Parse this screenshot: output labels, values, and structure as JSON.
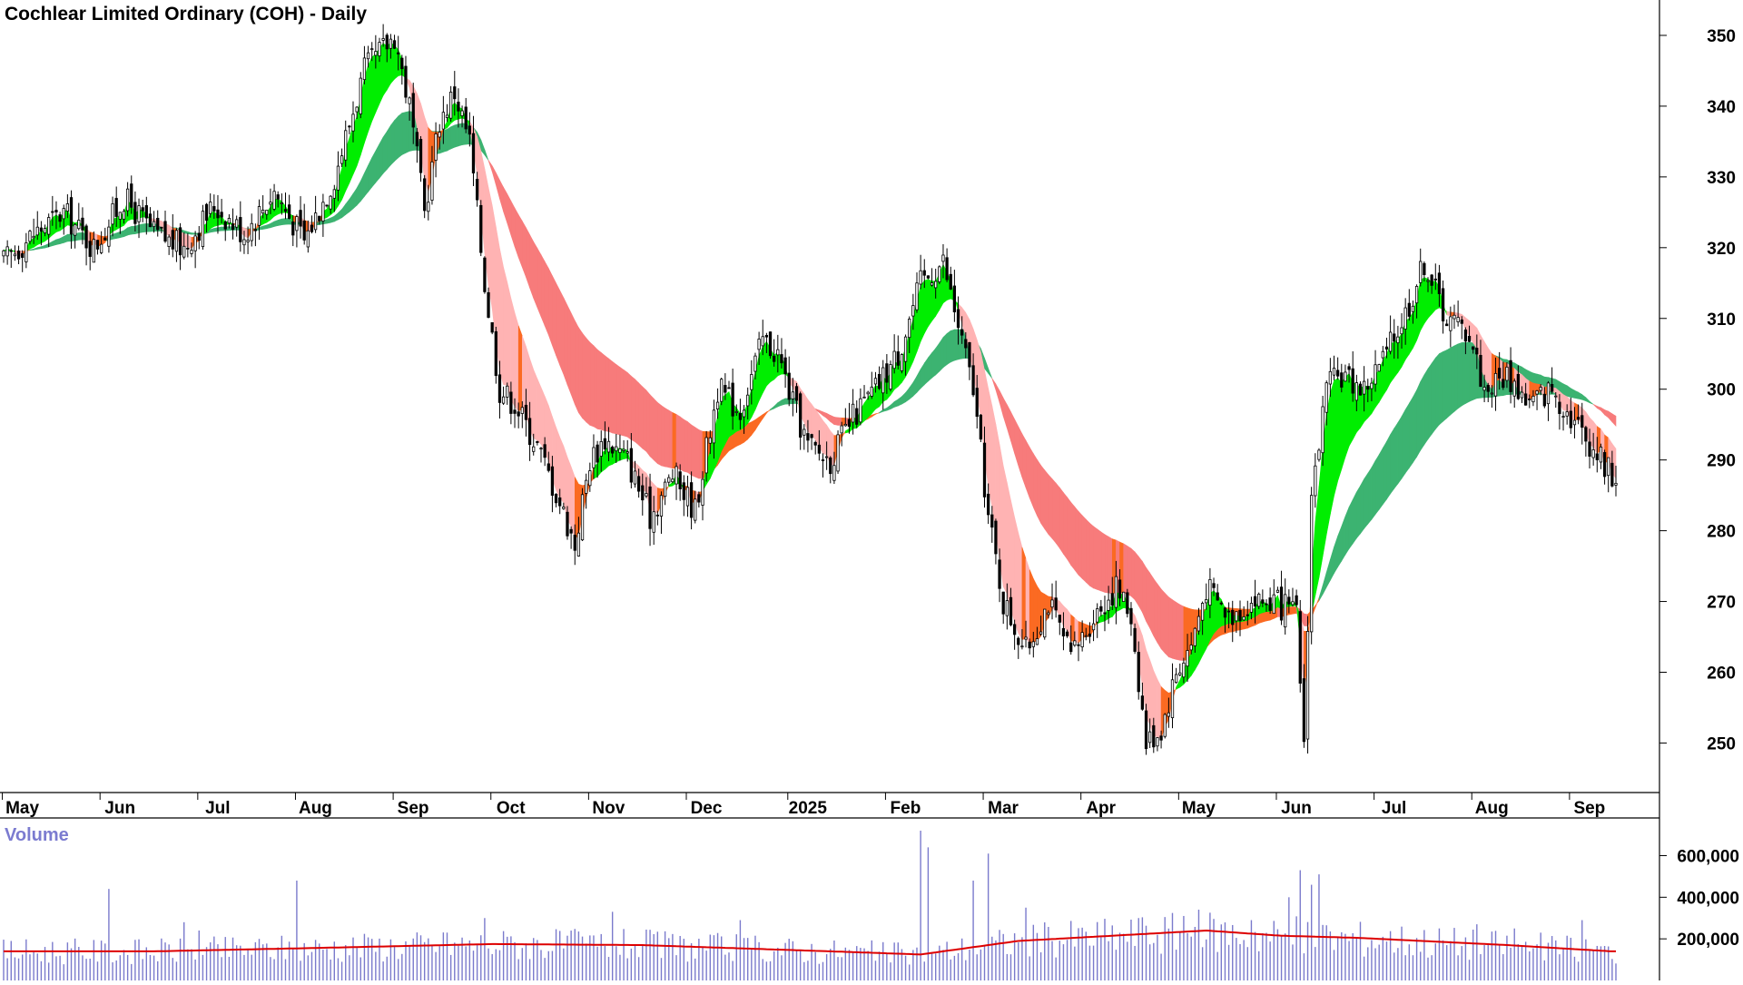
{
  "chart_data": {
    "type": "candlestick",
    "title": "Cochlear Limited Ordinary (COH) - Daily",
    "price_axis": {
      "ylim": [
        243,
        355
      ],
      "ticks": [
        250,
        260,
        270,
        280,
        290,
        300,
        310,
        320,
        330,
        340,
        350
      ]
    },
    "x_axis_labels": [
      "May",
      "Jun",
      "Jul",
      "Aug",
      "Sep",
      "Oct",
      "Nov",
      "Dec",
      "2025",
      "Feb",
      "Mar",
      "Apr",
      "May",
      "Jun",
      "Jul",
      "Aug",
      "Sep"
    ],
    "close_path": [
      [
        0,
        318
      ],
      [
        8,
        322
      ],
      [
        16,
        325
      ],
      [
        24,
        320
      ],
      [
        32,
        327
      ],
      [
        40,
        322
      ],
      [
        48,
        320
      ],
      [
        56,
        326
      ],
      [
        64,
        322
      ],
      [
        72,
        328
      ],
      [
        80,
        321
      ],
      [
        88,
        330
      ],
      [
        96,
        345
      ],
      [
        104,
        350
      ],
      [
        108,
        340
      ],
      [
        112,
        325
      ],
      [
        116,
        338
      ],
      [
        120,
        342
      ],
      [
        124,
        335
      ],
      [
        128,
        315
      ],
      [
        132,
        300
      ],
      [
        136,
        298
      ],
      [
        142,
        292
      ],
      [
        148,
        284
      ],
      [
        152,
        278
      ],
      [
        156,
        290
      ],
      [
        160,
        293
      ],
      [
        166,
        290
      ],
      [
        172,
        282
      ],
      [
        178,
        288
      ],
      [
        184,
        283
      ],
      [
        190,
        300
      ],
      [
        196,
        297
      ],
      [
        202,
        307
      ],
      [
        206,
        305
      ],
      [
        210,
        298
      ],
      [
        214,
        292
      ],
      [
        220,
        290
      ],
      [
        226,
        296
      ],
      [
        232,
        300
      ],
      [
        238,
        305
      ],
      [
        244,
        315
      ],
      [
        250,
        318
      ],
      [
        254,
        309
      ],
      [
        258,
        300
      ],
      [
        262,
        282
      ],
      [
        266,
        270
      ],
      [
        272,
        263
      ],
      [
        278,
        270
      ],
      [
        284,
        262
      ],
      [
        290,
        268
      ],
      [
        296,
        272
      ],
      [
        300,
        268
      ],
      [
        304,
        250
      ],
      [
        308,
        252
      ],
      [
        312,
        260
      ],
      [
        316,
        264
      ],
      [
        320,
        272
      ],
      [
        326,
        268
      ],
      [
        332,
        270
      ],
      [
        338,
        270
      ],
      [
        344,
        268
      ],
      [
        346,
        250
      ],
      [
        348,
        285
      ],
      [
        352,
        300
      ],
      [
        356,
        302
      ],
      [
        362,
        300
      ],
      [
        368,
        305
      ],
      [
        374,
        312
      ],
      [
        378,
        318
      ],
      [
        384,
        310
      ],
      [
        390,
        308
      ],
      [
        394,
        300
      ],
      [
        400,
        302
      ],
      [
        406,
        298
      ],
      [
        412,
        300
      ],
      [
        416,
        297
      ],
      [
        420,
        294
      ],
      [
        424,
        291
      ],
      [
        428,
        288
      ]
    ],
    "vol_axis": {
      "ylim": [
        0,
        720000
      ],
      "ticks": [
        200000,
        400000,
        600000
      ]
    },
    "volume_title": "Volume",
    "volume_spikes": [
      [
        28,
        440000
      ],
      [
        48,
        280000
      ],
      [
        52,
        240000
      ],
      [
        78,
        480000
      ],
      [
        98,
        200000
      ],
      [
        118,
        230000
      ],
      [
        128,
        300000
      ],
      [
        134,
        210000
      ],
      [
        162,
        330000
      ],
      [
        196,
        290000
      ],
      [
        244,
        720000
      ],
      [
        246,
        640000
      ],
      [
        258,
        480000
      ],
      [
        262,
        610000
      ],
      [
        272,
        350000
      ],
      [
        302,
        300000
      ],
      [
        314,
        310000
      ],
      [
        332,
        290000
      ],
      [
        342,
        400000
      ],
      [
        345,
        530000
      ],
      [
        348,
        460000
      ],
      [
        350,
        510000
      ],
      [
        367,
        210000
      ],
      [
        392,
        270000
      ],
      [
        402,
        250000
      ],
      [
        420,
        290000
      ]
    ],
    "volume_ma_path": [
      [
        0,
        140000
      ],
      [
        40,
        140000
      ],
      [
        80,
        155000
      ],
      [
        130,
        175000
      ],
      [
        170,
        170000
      ],
      [
        220,
        140000
      ],
      [
        244,
        125000
      ],
      [
        270,
        190000
      ],
      [
        300,
        220000
      ],
      [
        320,
        240000
      ],
      [
        340,
        215000
      ],
      [
        360,
        205000
      ],
      [
        400,
        170000
      ],
      [
        428,
        140000
      ]
    ],
    "colors": {
      "candle": "#000000",
      "short_ribbon_up": "#00ee00",
      "short_ribbon_down": "#fb6a22",
      "short_ribbon_down_weak": "#ffb3b3",
      "long_ribbon_up": "#3cb371",
      "long_ribbon_down": "#fb6a22",
      "long_ribbon_down_weak": "#f77b7b",
      "volume_bar": "#7a7acc",
      "volume_ma": "#dd0000",
      "axis": "#000000"
    }
  }
}
